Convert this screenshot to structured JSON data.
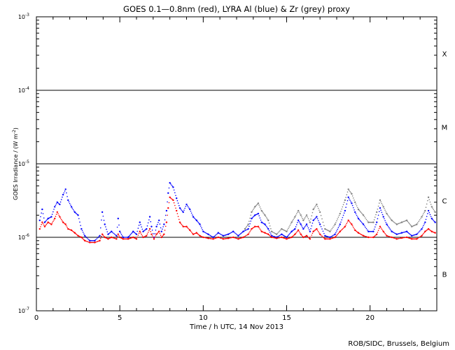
{
  "chart_data": {
    "type": "scatter",
    "title": "GOES 0.1—0.8nm (red), LYRA Al (blue) & Zr (grey) proxy",
    "xlabel": "Time / h UTC, 14 Nov 2013",
    "ylabel_main": "GOES Irradiance / (W m",
    "ylabel_sup": "-2",
    "ylabel_close": ")",
    "xlim": [
      0,
      24
    ],
    "ylim": [
      1e-07,
      0.001
    ],
    "y_scale": "log",
    "x_ticks": [
      {
        "value": 0,
        "label": "0"
      },
      {
        "value": 5,
        "label": "5"
      },
      {
        "value": 10,
        "label": "10"
      },
      {
        "value": 15,
        "label": "15"
      },
      {
        "value": 20,
        "label": "20"
      }
    ],
    "y_ticks": [
      {
        "exp": -7,
        "base": "10",
        "sup": "-7"
      },
      {
        "exp": -6,
        "base": "10",
        "sup": "-6"
      },
      {
        "exp": -5,
        "base": "10",
        "sup": "-5"
      },
      {
        "exp": -4,
        "base": "10",
        "sup": "-4"
      },
      {
        "exp": -3,
        "base": "10",
        "sup": "-3"
      }
    ],
    "flare_classes": [
      {
        "label": "B",
        "exp": -6.5
      },
      {
        "label": "C",
        "exp": -5.5
      },
      {
        "label": "M",
        "exp": -4.5
      },
      {
        "label": "X",
        "exp": -3.5
      }
    ],
    "threshold_lines": [
      -6,
      -5,
      -4
    ],
    "credit": "ROB/SIDC, Brussels, Belgium",
    "series": [
      {
        "name": "GOES 0.1—0.8nm",
        "color": "#ff0000",
        "x": [
          0.2,
          0.35,
          0.5,
          0.7,
          0.9,
          1.1,
          1.25,
          1.4,
          1.6,
          1.75,
          1.9,
          2.1,
          2.3,
          2.5,
          2.7,
          2.9,
          3.2,
          3.5,
          3.8,
          3.95,
          4.1,
          4.3,
          4.5,
          4.8,
          4.9,
          5.0,
          5.2,
          5.5,
          5.8,
          6.0,
          6.2,
          6.4,
          6.6,
          6.8,
          6.9,
          7.05,
          7.2,
          7.35,
          7.5,
          7.65,
          7.8,
          7.9,
          8.0,
          8.2,
          8.4,
          8.6,
          8.8,
          9.0,
          9.2,
          9.4,
          9.6,
          9.8,
          10.0,
          10.3,
          10.6,
          10.9,
          11.2,
          11.5,
          11.8,
          12.1,
          12.4,
          12.7,
          12.9,
          13.1,
          13.3,
          13.5,
          13.7,
          13.9,
          14.1,
          14.4,
          14.7,
          15.0,
          15.3,
          15.5,
          15.7,
          15.85,
          16.0,
          16.2,
          16.4,
          16.6,
          16.8,
          17.0,
          17.3,
          17.6,
          17.9,
          18.2,
          18.5,
          18.7,
          18.9,
          19.1,
          19.3,
          19.6,
          19.9,
          20.2,
          20.4,
          20.6,
          20.8,
          21.0,
          21.3,
          21.6,
          21.9,
          22.2,
          22.5,
          22.8,
          23.1,
          23.3,
          23.5,
          23.7,
          23.9
        ],
        "y": [
          1.3e-06,
          1.6e-06,
          1.4e-06,
          1.6e-06,
          1.5e-06,
          1.8e-06,
          2.2e-06,
          1.9e-06,
          1.6e-06,
          1.5e-06,
          1.3e-06,
          1.25e-06,
          1.15e-06,
          1.05e-06,
          1e-06,
          9e-07,
          8.5e-07,
          8.5e-07,
          9e-07,
          1.1e-06,
          1e-06,
          9.5e-07,
          1e-06,
          9.5e-07,
          1.1e-06,
          1e-06,
          9.5e-07,
          9.5e-07,
          1e-06,
          9.5e-07,
          1.2e-06,
          1e-06,
          1.05e-06,
          1.3e-06,
          1.1e-06,
          9.5e-07,
          1.1e-06,
          1.2e-06,
          1e-06,
          1.1e-06,
          1.6e-06,
          2.5e-06,
          3.5e-06,
          3.2e-06,
          2.3e-06,
          1.6e-06,
          1.4e-06,
          1.4e-06,
          1.25e-06,
          1.1e-06,
          1.15e-06,
          1.05e-06,
          1e-06,
          9.7e-07,
          9.5e-07,
          1e-06,
          9.5e-07,
          9.7e-07,
          1e-06,
          9.5e-07,
          1e-06,
          1.1e-06,
          1.3e-06,
          1.4e-06,
          1.4e-06,
          1.2e-06,
          1.15e-06,
          1.1e-06,
          1e-06,
          9.7e-07,
          1e-06,
          9.5e-07,
          1e-06,
          1.1e-06,
          1.25e-06,
          1.1e-06,
          1e-06,
          1.05e-06,
          9.5e-07,
          1.2e-06,
          1.3e-06,
          1.1e-06,
          9.5e-07,
          9.5e-07,
          1e-06,
          1.2e-06,
          1.4e-06,
          1.7e-06,
          1.5e-06,
          1.25e-06,
          1.15e-06,
          1.05e-06,
          1e-06,
          1e-06,
          1.1e-06,
          1.4e-06,
          1.2e-06,
          1.05e-06,
          1e-06,
          9.5e-07,
          9.8e-07,
          1e-06,
          9.5e-07,
          9.5e-07,
          1.05e-06,
          1.2e-06,
          1.3e-06,
          1.2e-06,
          1.15e-06
        ]
      },
      {
        "name": "LYRA Al",
        "color": "#0000ff",
        "x": [
          0.2,
          0.35,
          0.5,
          0.7,
          0.9,
          1.1,
          1.25,
          1.4,
          1.6,
          1.75,
          1.9,
          2.1,
          2.3,
          2.5,
          2.7,
          2.9,
          3.2,
          3.5,
          3.8,
          3.95,
          4.1,
          4.3,
          4.5,
          4.8,
          4.9,
          5.0,
          5.2,
          5.5,
          5.8,
          6.0,
          6.2,
          6.4,
          6.6,
          6.8,
          6.9,
          7.05,
          7.2,
          7.35,
          7.5,
          7.65,
          7.8,
          7.9,
          8.0,
          8.2,
          8.4,
          8.6,
          8.8,
          9.0,
          9.2,
          9.4,
          9.6,
          9.8,
          10.0,
          10.3,
          10.6,
          10.9,
          11.2,
          11.5,
          11.8,
          12.1,
          12.4,
          12.7,
          12.9,
          13.1,
          13.3,
          13.5,
          13.7,
          13.9,
          14.1,
          14.4,
          14.7,
          15.0,
          15.3,
          15.5,
          15.7,
          15.85,
          16.0,
          16.2,
          16.4,
          16.6,
          16.8,
          17.0,
          17.3,
          17.6,
          17.9,
          18.2,
          18.5,
          18.7,
          18.9,
          19.1,
          19.3,
          19.6,
          19.9,
          20.2,
          20.4,
          20.6,
          20.8,
          21.0,
          21.3,
          21.6,
          21.9,
          22.2,
          22.5,
          22.8,
          23.1,
          23.3,
          23.5,
          23.7,
          23.9
        ],
        "y": [
          1.7e-06,
          2.4e-06,
          1.6e-06,
          1.8e-06,
          1.9e-06,
          2.6e-06,
          3e-06,
          2.8e-06,
          3.8e-06,
          4.5e-06,
          3.2e-06,
          2.6e-06,
          2.2e-06,
          2e-06,
          1.3e-06,
          1.05e-06,
          9e-07,
          9e-07,
          1.05e-06,
          2.2e-06,
          1.5e-06,
          1.1e-06,
          1.2e-06,
          1.05e-06,
          1.8e-06,
          1.2e-06,
          1e-06,
          1e-06,
          1.2e-06,
          1.1e-06,
          1.6e-06,
          1.2e-06,
          1.3e-06,
          1.9e-06,
          1.4e-06,
          1e-06,
          1.4e-06,
          1.7e-06,
          1.2e-06,
          1.5e-06,
          2.3e-06,
          4e-06,
          5.5e-06,
          4.8e-06,
          3.4e-06,
          2.5e-06,
          2.2e-06,
          2.8e-06,
          2.4e-06,
          1.9e-06,
          1.7e-06,
          1.5e-06,
          1.2e-06,
          1.1e-06,
          1e-06,
          1.15e-06,
          1.05e-06,
          1.1e-06,
          1.2e-06,
          1.05e-06,
          1.2e-06,
          1.3e-06,
          1.8e-06,
          2e-06,
          2.1e-06,
          1.6e-06,
          1.5e-06,
          1.3e-06,
          1.05e-06,
          1e-06,
          1.1e-06,
          1e-06,
          1.2e-06,
          1.3e-06,
          1.7e-06,
          1.5e-06,
          1.3e-06,
          1.5e-06,
          1.2e-06,
          1.7e-06,
          1.9e-06,
          1.5e-06,
          1.05e-06,
          1e-06,
          1.1e-06,
          1.5e-06,
          2.3e-06,
          3.5e-06,
          2.9e-06,
          2.2e-06,
          1.8e-06,
          1.5e-06,
          1.2e-06,
          1.2e-06,
          1.6e-06,
          2.5e-06,
          1.9e-06,
          1.5e-06,
          1.2e-06,
          1.1e-06,
          1.15e-06,
          1.2e-06,
          1.05e-06,
          1.1e-06,
          1.3e-06,
          1.6e-06,
          2.3e-06,
          1.8e-06,
          1.6e-06
        ]
      },
      {
        "name": "LYRA Zr",
        "color": "#808080",
        "x": [
          12.5,
          12.7,
          12.9,
          13.1,
          13.3,
          13.5,
          13.7,
          13.9,
          14.1,
          14.4,
          14.7,
          15.0,
          15.3,
          15.5,
          15.7,
          15.85,
          16.0,
          16.2,
          16.4,
          16.6,
          16.8,
          17.0,
          17.3,
          17.6,
          17.9,
          18.2,
          18.5,
          18.7,
          18.9,
          19.1,
          19.3,
          19.6,
          19.9,
          20.2,
          20.4,
          20.6,
          20.8,
          21.0,
          21.3,
          21.6,
          21.9,
          22.2,
          22.5,
          22.8,
          23.1,
          23.3,
          23.5,
          23.7,
          23.9
        ],
        "y": [
          1.3e-06,
          1.5e-06,
          2.2e-06,
          2.6e-06,
          2.9e-06,
          2.3e-06,
          2e-06,
          1.7e-06,
          1.2e-06,
          1.1e-06,
          1.3e-06,
          1.2e-06,
          1.6e-06,
          1.9e-06,
          2.3e-06,
          2e-06,
          1.7e-06,
          2e-06,
          1.6e-06,
          2.4e-06,
          2.8e-06,
          2.2e-06,
          1.3e-06,
          1.2e-06,
          1.5e-06,
          2.1e-06,
          3.2e-06,
          4.5e-06,
          3.9e-06,
          3e-06,
          2.4e-06,
          2e-06,
          1.6e-06,
          1.6e-06,
          2.2e-06,
          3.2e-06,
          2.6e-06,
          2.1e-06,
          1.7e-06,
          1.5e-06,
          1.6e-06,
          1.7e-06,
          1.4e-06,
          1.5e-06,
          1.9e-06,
          2.3e-06,
          3.5e-06,
          2.6e-06,
          2.2e-06
        ]
      }
    ]
  }
}
